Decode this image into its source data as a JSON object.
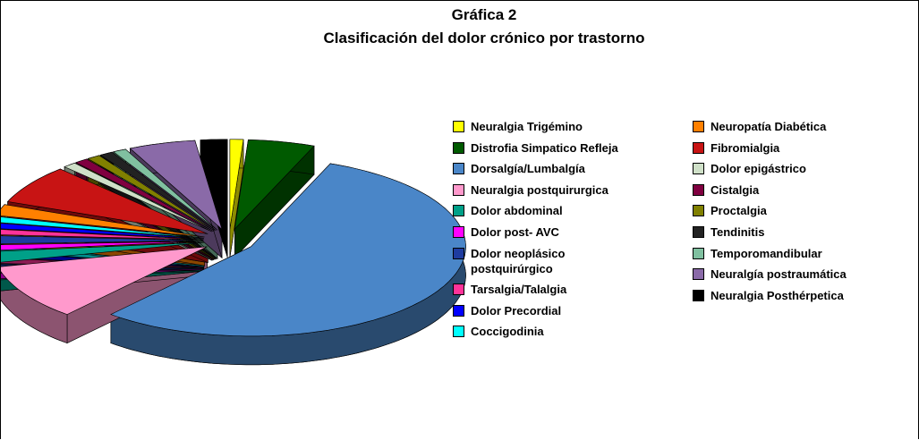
{
  "chart_data": {
    "type": "pie",
    "title": "Gráfica 2",
    "subtitle": "Clasificación del dolor crónico por trastorno",
    "legend_columns": 2,
    "series": [
      {
        "name": "Neuralgia Trigémino",
        "color": "#ffff00",
        "values": [
          1
        ]
      },
      {
        "name": "Distrofia Simpatico Refleja",
        "color": "#005a00",
        "values": [
          5
        ]
      },
      {
        "name": "Dorsalgía/Lumbalgía",
        "color": "#4a86c8",
        "values": [
          55
        ]
      },
      {
        "name": "Neuralgia postquirurgica",
        "color": "#ff99cc",
        "values": [
          10
        ]
      },
      {
        "name": "Dolor abdominal",
        "color": "#00a088",
        "values": [
          2
        ]
      },
      {
        "name": "Dolor post- AVC",
        "color": "#ff00ff",
        "values": [
          1
        ]
      },
      {
        "name": "Dolor neoplásico postquirúrgico",
        "color": "#1e3ca0",
        "values": [
          1.5
        ]
      },
      {
        "name": "Tarsalgia/Talalgia",
        "color": "#ff3399",
        "values": [
          1
        ]
      },
      {
        "name": "Dolor Precordial",
        "color": "#0000ff",
        "values": [
          1
        ]
      },
      {
        "name": "Coccigodinia",
        "color": "#00ffff",
        "values": [
          1
        ]
      },
      {
        "name": "Neuropatía Diabética",
        "color": "#ff8000",
        "values": [
          2
        ]
      },
      {
        "name": "Fibromialgia",
        "color": "#c81414",
        "values": [
          7
        ]
      },
      {
        "name": "Dolor epigástrico",
        "color": "#cfe0c8",
        "values": [
          1
        ]
      },
      {
        "name": "Cistalgia",
        "color": "#800040",
        "values": [
          1
        ]
      },
      {
        "name": "Proctalgia",
        "color": "#808000",
        "values": [
          1
        ]
      },
      {
        "name": "Tendinitis",
        "color": "#222222",
        "values": [
          1
        ]
      },
      {
        "name": "Temporomandibular",
        "color": "#80c0a0",
        "values": [
          1
        ]
      },
      {
        "name": "Neuralgía postraumática",
        "color": "#8a6aa8",
        "values": [
          5
        ]
      },
      {
        "name": "Neuralgia Posthérpetica",
        "color": "#000000",
        "values": [
          2
        ]
      }
    ]
  }
}
